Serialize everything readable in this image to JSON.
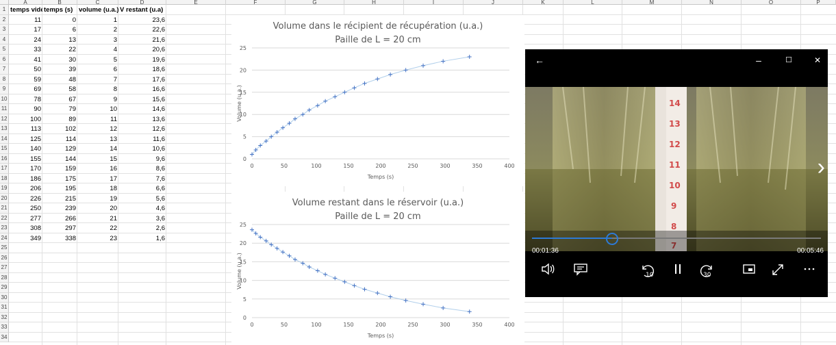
{
  "spreadsheet": {
    "columns": [
      "A",
      "B",
      "C",
      "D",
      "E",
      "F",
      "G",
      "H",
      "I",
      "J",
      "K",
      "L",
      "M",
      "N",
      "O",
      "P"
    ],
    "row_numbers": [
      "1",
      "2",
      "3",
      "4",
      "5",
      "6",
      "7",
      "8",
      "9",
      "10",
      "11",
      "12",
      "13",
      "14",
      "15",
      "16",
      "17",
      "18",
      "19",
      "20",
      "21",
      "22",
      "23",
      "24",
      "25",
      "26",
      "27",
      "28",
      "29",
      "30",
      "31",
      "32",
      "33",
      "34"
    ],
    "headers": [
      "temps vidéo",
      "temps (s)",
      "volume (u.a.)",
      "V restant (u.a)"
    ],
    "rows": [
      [
        "11",
        "0",
        "1",
        "23,6"
      ],
      [
        "17",
        "6",
        "2",
        "22,6"
      ],
      [
        "24",
        "13",
        "3",
        "21,6"
      ],
      [
        "33",
        "22",
        "4",
        "20,6"
      ],
      [
        "41",
        "30",
        "5",
        "19,6"
      ],
      [
        "50",
        "39",
        "6",
        "18,6"
      ],
      [
        "59",
        "48",
        "7",
        "17,6"
      ],
      [
        "69",
        "58",
        "8",
        "16,6"
      ],
      [
        "78",
        "67",
        "9",
        "15,6"
      ],
      [
        "90",
        "79",
        "10",
        "14,6"
      ],
      [
        "100",
        "89",
        "11",
        "13,6"
      ],
      [
        "113",
        "102",
        "12",
        "12,6"
      ],
      [
        "125",
        "114",
        "13",
        "11,6"
      ],
      [
        "140",
        "129",
        "14",
        "10,6"
      ],
      [
        "155",
        "144",
        "15",
        "9,6"
      ],
      [
        "170",
        "159",
        "16",
        "8,6"
      ],
      [
        "186",
        "175",
        "17",
        "7,6"
      ],
      [
        "206",
        "195",
        "18",
        "6,6"
      ],
      [
        "226",
        "215",
        "19",
        "5,6"
      ],
      [
        "250",
        "239",
        "20",
        "4,6"
      ],
      [
        "277",
        "266",
        "21",
        "3,6"
      ],
      [
        "308",
        "297",
        "22",
        "2,6"
      ],
      [
        "349",
        "338",
        "23",
        "1,6"
      ]
    ]
  },
  "chart_data": [
    {
      "type": "scatter",
      "title": "Volume dans le récipient de récupération (u.a.)",
      "subtitle": "Paille de L = 20 cm",
      "xlabel": "Temps (s)",
      "ylabel": "Volume (u.a.)",
      "xlim": [
        0,
        400
      ],
      "ylim": [
        0,
        25
      ],
      "xticks": [
        "0",
        "50",
        "100",
        "150",
        "200",
        "250",
        "300",
        "350",
        "400"
      ],
      "yticks": [
        "0",
        "5",
        "10",
        "15",
        "20",
        "25"
      ],
      "grid": true,
      "x": [
        0,
        6,
        13,
        22,
        30,
        39,
        48,
        58,
        67,
        79,
        89,
        102,
        114,
        129,
        144,
        159,
        175,
        195,
        215,
        239,
        266,
        297,
        338
      ],
      "y": [
        1,
        2,
        3,
        4,
        5,
        6,
        7,
        8,
        9,
        10,
        11,
        12,
        13,
        14,
        15,
        16,
        17,
        18,
        19,
        20,
        21,
        22,
        23
      ],
      "color": "#4472c4"
    },
    {
      "type": "scatter",
      "title": "Volume restant dans le réservoir (u.a.)",
      "subtitle": "Paille de L = 20 cm",
      "xlabel": "Temps (s)",
      "ylabel": "Volume (u.a.)",
      "xlim": [
        0,
        400
      ],
      "ylim": [
        0,
        25
      ],
      "xticks": [
        "0",
        "50",
        "100",
        "150",
        "200",
        "250",
        "300",
        "350",
        "400"
      ],
      "yticks": [
        "0",
        "5",
        "10",
        "15",
        "20",
        "25"
      ],
      "grid": true,
      "x": [
        0,
        6,
        13,
        22,
        30,
        39,
        48,
        58,
        67,
        79,
        89,
        102,
        114,
        129,
        144,
        159,
        175,
        195,
        215,
        239,
        266,
        297,
        338
      ],
      "y": [
        23.6,
        22.6,
        21.6,
        20.6,
        19.6,
        18.6,
        17.6,
        16.6,
        15.6,
        14.6,
        13.6,
        12.6,
        11.6,
        10.6,
        9.6,
        8.6,
        7.6,
        6.6,
        5.6,
        4.6,
        3.6,
        2.6,
        1.6
      ],
      "color": "#4472c4"
    }
  ],
  "player": {
    "back_icon": "←",
    "minimize_icon": "–",
    "maximize_icon": "☐",
    "close_icon": "✕",
    "next_icon": "›",
    "current_time": "00:01:36",
    "total_time": "00:05:46",
    "progress": 0.277,
    "skip_back_label": "10",
    "skip_forward_label": "30",
    "ruler_marks": [
      "14",
      "13",
      "12",
      "11",
      "10",
      "9",
      "8",
      "7"
    ]
  }
}
